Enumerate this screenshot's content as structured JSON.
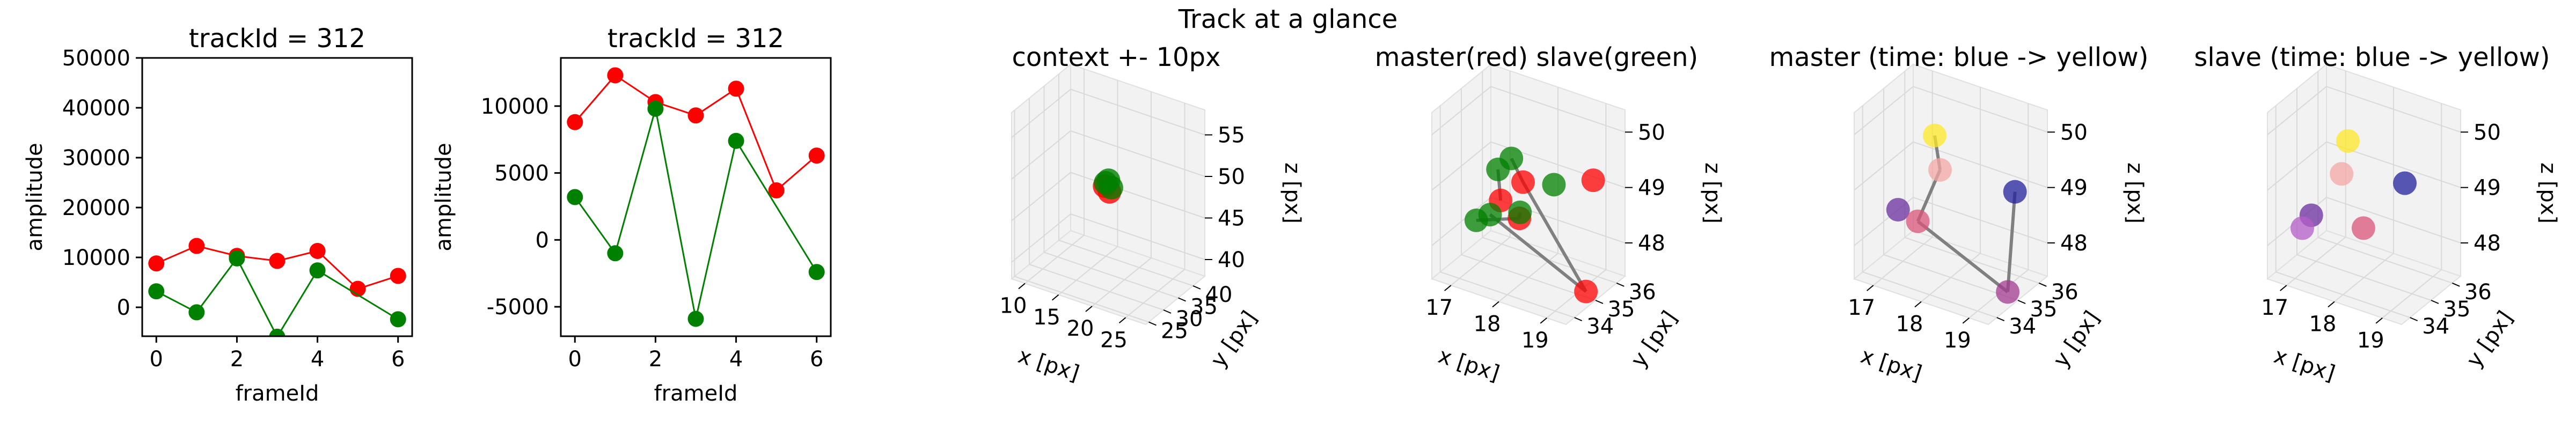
{
  "figure": {
    "suptitle": "Track at a glance"
  },
  "chart_data": [
    {
      "type": "line",
      "title": "trackId = 312",
      "xlabel": "frameId",
      "ylabel": "amplitude",
      "xlim": [
        -0.35,
        6.35
      ],
      "ylim": [
        -5800,
        50000
      ],
      "x_ticks": [
        0,
        2,
        4,
        6
      ],
      "y_ticks": [
        0,
        10000,
        20000,
        30000,
        40000,
        50000
      ],
      "grid": false,
      "series": [
        {
          "color": "#ff0000",
          "x": [
            0,
            1,
            2,
            3,
            4,
            5,
            6
          ],
          "y": [
            8800,
            12300,
            10300,
            9300,
            11300,
            3700,
            6300
          ]
        },
        {
          "color": "#008000",
          "x": [
            0,
            1,
            2,
            3,
            4,
            5,
            6
          ],
          "y": [
            3200,
            -1000,
            9800,
            -5900,
            7400,
            null,
            -2400
          ]
        }
      ]
    },
    {
      "type": "line",
      "title": "trackId = 312",
      "xlabel": "frameId",
      "ylabel": "amplitude",
      "xlim": [
        -0.35,
        6.35
      ],
      "ylim": [
        -7200,
        13600
      ],
      "x_ticks": [
        0,
        2,
        4,
        6
      ],
      "y_ticks": [
        -5000,
        0,
        5000,
        10000
      ],
      "grid": false,
      "series": [
        {
          "color": "#ff0000",
          "x": [
            0,
            1,
            2,
            3,
            4,
            5,
            6
          ],
          "y": [
            8800,
            12300,
            10300,
            9300,
            11300,
            3700,
            6300
          ]
        },
        {
          "color": "#008000",
          "x": [
            0,
            1,
            2,
            3,
            4,
            5,
            6
          ],
          "y": [
            3200,
            -1000,
            9800,
            -5900,
            7400,
            null,
            -2400
          ]
        }
      ]
    },
    {
      "type": "scatter",
      "projection": "3d",
      "title": "context +- 10px",
      "xlabel": "x [px]",
      "ylabel": "y [px]",
      "zlabel": "z [px]",
      "xlim": [
        8,
        28
      ],
      "ylim": [
        24,
        44
      ],
      "zlim": [
        38,
        58
      ],
      "x_ticks": [
        10,
        15,
        20,
        25
      ],
      "y_ticks": [
        25,
        30,
        35,
        40
      ],
      "z_ticks": [
        40,
        45,
        50,
        55
      ],
      "points": [
        {
          "x": 17.7,
          "y": 35.1,
          "z": 47.9,
          "color": "#ff0000",
          "alpha": 0.8
        },
        {
          "x": 17.2,
          "y": 34.6,
          "z": 48.6,
          "color": "#ff0000",
          "alpha": 0.8
        },
        {
          "x": 17.6,
          "y": 35.0,
          "z": 49.3,
          "color": "#008000",
          "alpha": 0.8
        },
        {
          "x": 17.3,
          "y": 34.7,
          "z": 49.0,
          "color": "#008000",
          "alpha": 0.8
        },
        {
          "x": 17.9,
          "y": 35.3,
          "z": 48.4,
          "color": "#008000",
          "alpha": 0.8
        }
      ]
    },
    {
      "type": "scatter",
      "projection": "3d",
      "title": "master(red) slave(green)",
      "xlabel": "x [px]",
      "ylabel": "y [px]",
      "zlabel": "z [px]",
      "xlim": [
        16.6,
        19.4
      ],
      "ylim": [
        33.6,
        36.4
      ],
      "zlim": [
        47.4,
        50.4
      ],
      "x_ticks": [
        17,
        18,
        19
      ],
      "y_ticks": [
        34,
        35,
        36
      ],
      "z_ticks": [
        48,
        49,
        50
      ],
      "points": [
        {
          "x": 17.8,
          "y": 35.2,
          "z": 49.0,
          "color": "#ff0000"
        },
        {
          "x": 19.2,
          "y": 35.0,
          "z": 47.5,
          "color": "#ff0000"
        },
        {
          "x": 17.2,
          "y": 35.5,
          "z": 48.4,
          "color": "#ff0000"
        },
        {
          "x": 17.9,
          "y": 34.8,
          "z": 48.5,
          "color": "#ff0000"
        },
        {
          "x": 19.0,
          "y": 35.8,
          "z": 49.2,
          "color": "#ff0000"
        },
        {
          "x": 17.6,
          "y": 35.1,
          "z": 49.4,
          "color": "#008000"
        },
        {
          "x": 18.0,
          "y": 34.6,
          "z": 48.7,
          "color": "#008000"
        },
        {
          "x": 17.1,
          "y": 35.6,
          "z": 48.9,
          "color": "#008000"
        },
        {
          "x": 17.2,
          "y": 35.0,
          "z": 48.3,
          "color": "#008000"
        },
        {
          "x": 18.4,
          "y": 35.3,
          "z": 49.1,
          "color": "#008000"
        },
        {
          "x": 17.0,
          "y": 34.8,
          "z": 48.2,
          "color": "#008000"
        }
      ],
      "lines": [
        {
          "color": "#808080",
          "from": [
            17.8,
            35.2,
            49.0
          ],
          "to": [
            17.6,
            35.1,
            49.4
          ]
        },
        {
          "color": "#808080",
          "from": [
            17.9,
            34.8,
            48.5
          ],
          "to": [
            18.0,
            34.6,
            48.7
          ]
        },
        {
          "color": "#808080",
          "from": [
            17.2,
            35.5,
            48.4
          ],
          "to": [
            17.1,
            35.6,
            48.9
          ]
        },
        {
          "color": "#808080",
          "from": [
            19.2,
            35.0,
            47.5
          ],
          "to": [
            17.2,
            35.0,
            48.3
          ]
        },
        {
          "color": "#808080",
          "from": [
            17.8,
            35.2,
            49.0
          ],
          "to": [
            19.2,
            35.0,
            47.5
          ]
        },
        {
          "color": "#808080",
          "from": [
            17.9,
            34.8,
            48.5
          ],
          "to": [
            17.0,
            34.8,
            48.2
          ]
        }
      ]
    },
    {
      "type": "scatter",
      "projection": "3d",
      "title": "master (time: blue -> yellow)",
      "xlabel": "x [px]",
      "ylabel": "y [px]",
      "zlabel": "z [px]",
      "xlim": [
        16.6,
        19.4
      ],
      "ylim": [
        33.6,
        36.4
      ],
      "zlim": [
        47.4,
        50.4
      ],
      "x_ticks": [
        17,
        18,
        19
      ],
      "y_ticks": [
        34,
        35,
        36
      ],
      "z_ticks": [
        48,
        49,
        50
      ],
      "points": [
        {
          "x": 18.9,
          "y": 36.0,
          "z": 48.9,
          "color": "#21209c"
        },
        {
          "x": 16.9,
          "y": 35.0,
          "z": 48.3,
          "color": "#6a2ea0"
        },
        {
          "x": 19.1,
          "y": 35.2,
          "z": 47.4,
          "color": "#a13a8f"
        },
        {
          "x": 17.4,
          "y": 34.8,
          "z": 48.3,
          "color": "#d9547a"
        },
        {
          "x": 17.6,
          "y": 35.4,
          "z": 49.1,
          "color": "#f4a6a6"
        },
        {
          "x": 17.4,
          "y": 35.6,
          "z": 49.6,
          "color": "#fde725"
        }
      ],
      "lines": [
        {
          "color": "#808080",
          "from": [
            18.9,
            36.0,
            48.9
          ],
          "to": [
            19.1,
            35.2,
            47.4
          ]
        },
        {
          "color": "#808080",
          "from": [
            19.1,
            35.2,
            47.4
          ],
          "to": [
            17.4,
            34.8,
            48.3
          ]
        },
        {
          "color": "#808080",
          "from": [
            17.4,
            34.8,
            48.3
          ],
          "to": [
            17.6,
            35.4,
            49.1
          ]
        },
        {
          "color": "#808080",
          "from": [
            17.6,
            35.4,
            49.1
          ],
          "to": [
            17.4,
            35.6,
            49.6
          ]
        }
      ]
    },
    {
      "type": "scatter",
      "projection": "3d",
      "title": "slave (time: blue -> yellow)",
      "xlabel": "x [px]",
      "ylabel": "y [px]",
      "zlabel": "z [px]",
      "xlim": [
        16.6,
        19.4
      ],
      "ylim": [
        33.6,
        36.4
      ],
      "zlim": [
        47.4,
        50.4
      ],
      "x_ticks": [
        17,
        18,
        19
      ],
      "y_ticks": [
        34,
        35,
        36
      ],
      "z_ticks": [
        48,
        49,
        50
      ],
      "points": [
        {
          "x": 18.5,
          "y": 35.8,
          "z": 49.0,
          "color": "#21209c"
        },
        {
          "x": 16.9,
          "y": 35.0,
          "z": 48.2,
          "color": "#6a2ea0"
        },
        {
          "x": 17.9,
          "y": 35.2,
          "z": 48.2,
          "color": "#d9547a"
        },
        {
          "x": 16.8,
          "y": 34.8,
          "z": 48.0,
          "color": "#b45cc8"
        },
        {
          "x": 17.4,
          "y": 35.3,
          "z": 49.0,
          "color": "#f4a6a6"
        },
        {
          "x": 17.4,
          "y": 35.6,
          "z": 49.5,
          "color": "#fde725"
        }
      ],
      "lines": []
    }
  ]
}
